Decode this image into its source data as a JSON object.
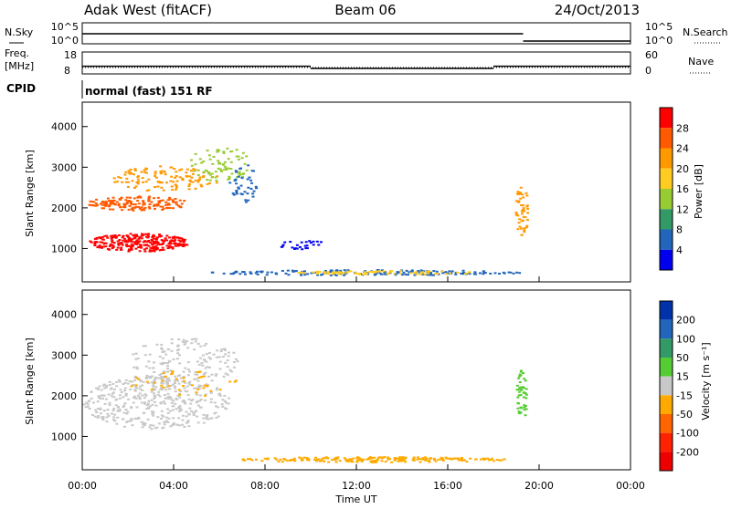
{
  "header": {
    "station": "Adak West (fitACF)",
    "beam": "Beam 06",
    "date": "24/Oct/2013"
  },
  "noise_panel": {
    "left_label": "N.Sky",
    "right_label": "N.Search",
    "y_ticks": [
      "10^5",
      "10^0"
    ]
  },
  "freq_panel": {
    "left_label_line1": "Freq.",
    "left_label_line2": "[MHz]",
    "right_label": "Nave",
    "left_ticks": [
      "18",
      "8"
    ],
    "right_ticks": [
      "60",
      "0"
    ]
  },
  "cpid_panel": {
    "label": "CPID",
    "text": "normal (fast) 151 RF"
  },
  "power_panel": {
    "ylabel": "Slant Range [km]",
    "y_ticks": [
      "4000",
      "3000",
      "2000",
      "1000"
    ],
    "colorbar_label": "Power [dB]",
    "colorbar_ticks": [
      "28",
      "24",
      "20",
      "16",
      "12",
      "8",
      "4"
    ],
    "colorbar_colors": [
      "#ff0000",
      "#ff5a00",
      "#ff9900",
      "#ffcc22",
      "#99cc33",
      "#339966",
      "#2266bb",
      "#0000ee"
    ]
  },
  "velocity_panel": {
    "ylabel": "Slant Range [km]",
    "y_ticks": [
      "4000",
      "3000",
      "2000",
      "1000"
    ],
    "colorbar_label": "Velocity [m s⁻¹]",
    "colorbar_ticks": [
      "200",
      "100",
      "50",
      "15",
      "-15",
      "-50",
      "-100",
      "-200"
    ],
    "colorbar_colors": [
      "#0033aa",
      "#2266bb",
      "#339966",
      "#55cc33",
      "#c8c8c8",
      "#ffaa00",
      "#ff6600",
      "#ff2200",
      "#ee0000"
    ]
  },
  "x_axis": {
    "ticks": [
      "00:00",
      "04:00",
      "08:00",
      "12:00",
      "16:00",
      "20:00",
      "00:00"
    ],
    "label": "Time UT"
  },
  "chart_data": {
    "type": "heatmap",
    "title": "Adak West (fitACF) Beam 06 24/Oct/2013",
    "xlabel": "Time UT",
    "ylabel": "Slant Range [km]",
    "x_range_hours": [
      0,
      24
    ],
    "y_range_km": [
      180,
      4600
    ],
    "freq_mhz_segments": [
      {
        "start_h": 0,
        "end_h": 10,
        "value": 11.5
      },
      {
        "start_h": 10,
        "end_h": 18,
        "value": 10.5
      },
      {
        "start_h": 18,
        "end_h": 24,
        "value": 11.5
      }
    ],
    "noise_segments": [
      {
        "start_h": 0,
        "end_h": 19.3,
        "level": "high"
      },
      {
        "start_h": 19.3,
        "end_h": 24,
        "level": "low"
      }
    ]
  }
}
